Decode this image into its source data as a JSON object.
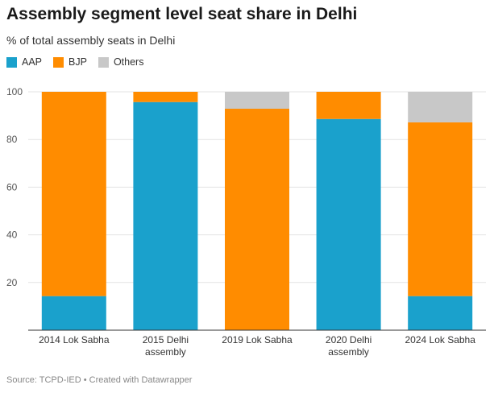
{
  "header": {
    "title": "Assembly segment level seat share in Delhi",
    "subtitle": "% of total assembly seats in Delhi"
  },
  "footer": {
    "source": "Source: TCPD-IED • Created with Datawrapper"
  },
  "chart_data": {
    "type": "bar",
    "stacked": true,
    "categories": [
      [
        "2014 Lok Sabha"
      ],
      [
        "2015 Delhi",
        "assembly"
      ],
      [
        "2019 Lok Sabha"
      ],
      [
        "2020 Delhi",
        "assembly"
      ],
      [
        "2024 Lok Sabha"
      ]
    ],
    "series": [
      {
        "name": "AAP",
        "color": "#1aa1cc",
        "values": [
          14.3,
          95.7,
          0,
          88.6,
          14.3
        ]
      },
      {
        "name": "BJP",
        "color": "#ff8c00",
        "values": [
          85.7,
          4.3,
          92.9,
          11.4,
          72.9
        ]
      },
      {
        "name": "Others",
        "color": "#c8c8c8",
        "values": [
          0,
          0,
          7.1,
          0,
          12.8
        ]
      }
    ],
    "ylim": [
      0,
      100
    ],
    "yticks": [
      "100",
      "80",
      "60",
      "40",
      "20"
    ],
    "ytick_values": [
      100,
      80,
      60,
      40,
      20
    ],
    "grid": true,
    "legend_position": "top-left"
  }
}
